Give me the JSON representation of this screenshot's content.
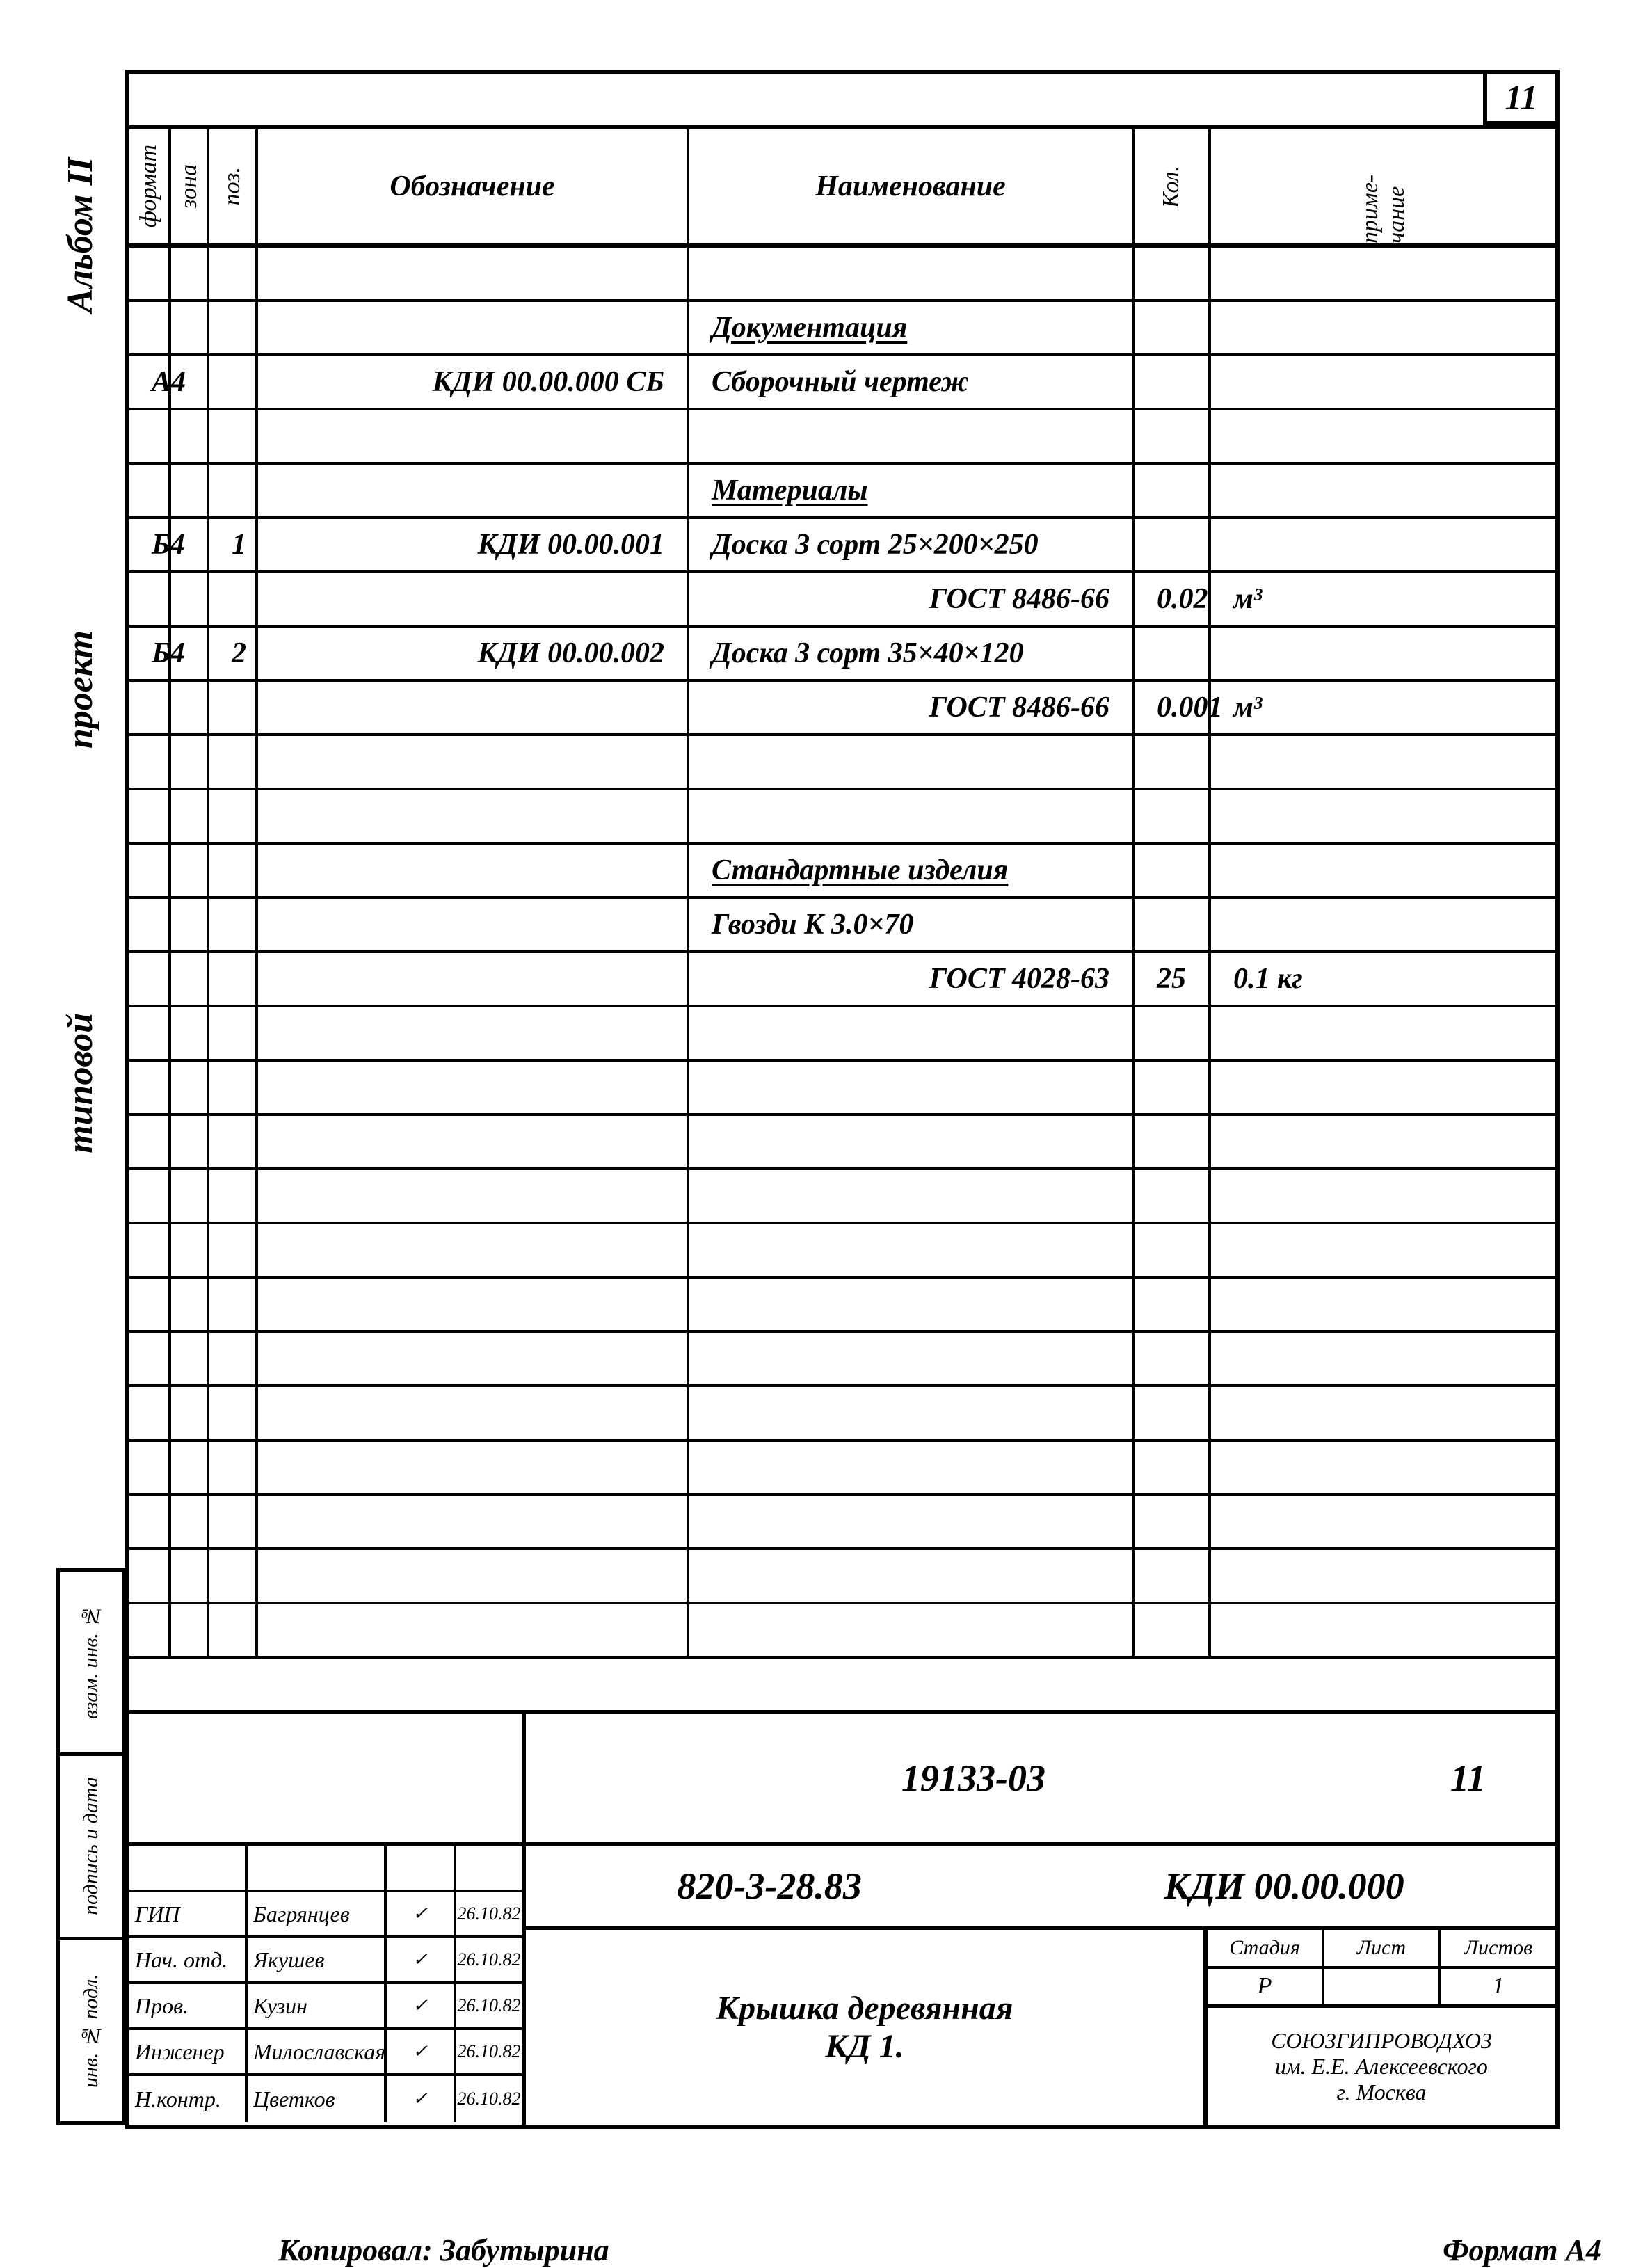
{
  "page_number": "11",
  "side": {
    "album": "Альбом II",
    "project": "проект",
    "typical": "типовой"
  },
  "left_slots": [
    "инв. № подл.",
    "подпись и дата",
    "взам. инв. №"
  ],
  "spec": {
    "headers": {
      "format": "формат",
      "zone": "зона",
      "pos": "поз.",
      "desig": "Обозначение",
      "name": "Наименование",
      "qty": "Кол.",
      "note": "приме-\nчание"
    },
    "rows": [
      {
        "format": "",
        "zone": "",
        "pos": "",
        "desig": "",
        "name": "",
        "qty": "",
        "note": ""
      },
      {
        "format": "",
        "zone": "",
        "pos": "",
        "desig": "",
        "name_u": "Документация",
        "qty": "",
        "note": ""
      },
      {
        "format": "А4",
        "zone": "",
        "pos": "",
        "desig": "КДИ 00.00.000 СБ",
        "name": "Сборочный чертеж",
        "qty": "",
        "note": ""
      },
      {
        "format": "",
        "zone": "",
        "pos": "",
        "desig": "",
        "name": "",
        "qty": "",
        "note": ""
      },
      {
        "format": "",
        "zone": "",
        "pos": "",
        "desig": "",
        "name_u": "Материалы",
        "qty": "",
        "note": ""
      },
      {
        "format": "Б4",
        "zone": "",
        "pos": "1",
        "desig": "КДИ 00.00.001",
        "name": "Доска 3 сорт 25×200×250",
        "qty": "",
        "note": ""
      },
      {
        "format": "",
        "zone": "",
        "pos": "",
        "desig": "",
        "name": "ГОСТ 8486-66",
        "name_align": "r",
        "qty": "0.02",
        "note": "м³"
      },
      {
        "format": "Б4",
        "zone": "",
        "pos": "2",
        "desig": "КДИ 00.00.002",
        "name": "Доска 3 сорт 35×40×120",
        "qty": "",
        "note": ""
      },
      {
        "format": "",
        "zone": "",
        "pos": "",
        "desig": "",
        "name": "ГОСТ 8486-66",
        "name_align": "r",
        "qty": "0.001",
        "note": "м³"
      },
      {
        "format": "",
        "zone": "",
        "pos": "",
        "desig": "",
        "name": "",
        "qty": "",
        "note": ""
      },
      {
        "format": "",
        "zone": "",
        "pos": "",
        "desig": "",
        "name": "",
        "qty": "",
        "note": ""
      },
      {
        "format": "",
        "zone": "",
        "pos": "",
        "desig": "",
        "name_u": "Стандартные изделия",
        "qty": "",
        "note": ""
      },
      {
        "format": "",
        "zone": "",
        "pos": "",
        "desig": "",
        "name": "Гвозди К 3.0×70",
        "qty": "",
        "note": ""
      },
      {
        "format": "",
        "zone": "",
        "pos": "",
        "desig": "",
        "name": "ГОСТ 4028-63",
        "name_align": "r",
        "qty": "25",
        "note": "0.1 кг"
      },
      {
        "format": "",
        "zone": "",
        "pos": "",
        "desig": "",
        "name": "",
        "qty": "",
        "note": ""
      },
      {
        "format": "",
        "zone": "",
        "pos": "",
        "desig": "",
        "name": "",
        "qty": "",
        "note": ""
      },
      {
        "format": "",
        "zone": "",
        "pos": "",
        "desig": "",
        "name": "",
        "qty": "",
        "note": ""
      },
      {
        "format": "",
        "zone": "",
        "pos": "",
        "desig": "",
        "name": "",
        "qty": "",
        "note": ""
      },
      {
        "format": "",
        "zone": "",
        "pos": "",
        "desig": "",
        "name": "",
        "qty": "",
        "note": ""
      },
      {
        "format": "",
        "zone": "",
        "pos": "",
        "desig": "",
        "name": "",
        "qty": "",
        "note": ""
      },
      {
        "format": "",
        "zone": "",
        "pos": "",
        "desig": "",
        "name": "",
        "qty": "",
        "note": ""
      },
      {
        "format": "",
        "zone": "",
        "pos": "",
        "desig": "",
        "name": "",
        "qty": "",
        "note": ""
      },
      {
        "format": "",
        "zone": "",
        "pos": "",
        "desig": "",
        "name": "",
        "qty": "",
        "note": ""
      },
      {
        "format": "",
        "zone": "",
        "pos": "",
        "desig": "",
        "name": "",
        "qty": "",
        "note": ""
      },
      {
        "format": "",
        "zone": "",
        "pos": "",
        "desig": "",
        "name": "",
        "qty": "",
        "note": ""
      },
      {
        "format": "",
        "zone": "",
        "pos": "",
        "desig": "",
        "name": "",
        "qty": "",
        "note": ""
      }
    ]
  },
  "doc": {
    "number": "19133-03",
    "sheet": "11",
    "code1": "820-3-28.83",
    "code2": "КДИ 00.00.000",
    "title1": "Крышка деревянная",
    "title2": "КД 1."
  },
  "signatures": [
    {
      "role": "",
      "name": "",
      "sig": "",
      "date": ""
    },
    {
      "role": "ГИП",
      "name": "Багрянцев",
      "sig": "✓",
      "date": "26.10.82"
    },
    {
      "role": "Нач. отд.",
      "name": "Якушев",
      "sig": "✓",
      "date": "26.10.82"
    },
    {
      "role": "Пров.",
      "name": "Кузин",
      "sig": "✓",
      "date": "26.10.82"
    },
    {
      "role": "Инженер",
      "name": "Милославская",
      "sig": "✓",
      "date": "26.10.82"
    },
    {
      "role": "Н.контр.",
      "name": "Цветков",
      "sig": "✓",
      "date": "26.10.82"
    }
  ],
  "meta": {
    "h1": "Стадия",
    "h2": "Лист",
    "h3": "Листов",
    "v1": "Р",
    "v2": "",
    "v3": "1",
    "org1": "СОЮЗГИПРОВОДХОЗ",
    "org2": "им. Е.Е. Алексеевского",
    "org3": "г. Москва"
  },
  "footer": {
    "copied": "Копировал: Забутырина",
    "format": "Формат А4"
  }
}
